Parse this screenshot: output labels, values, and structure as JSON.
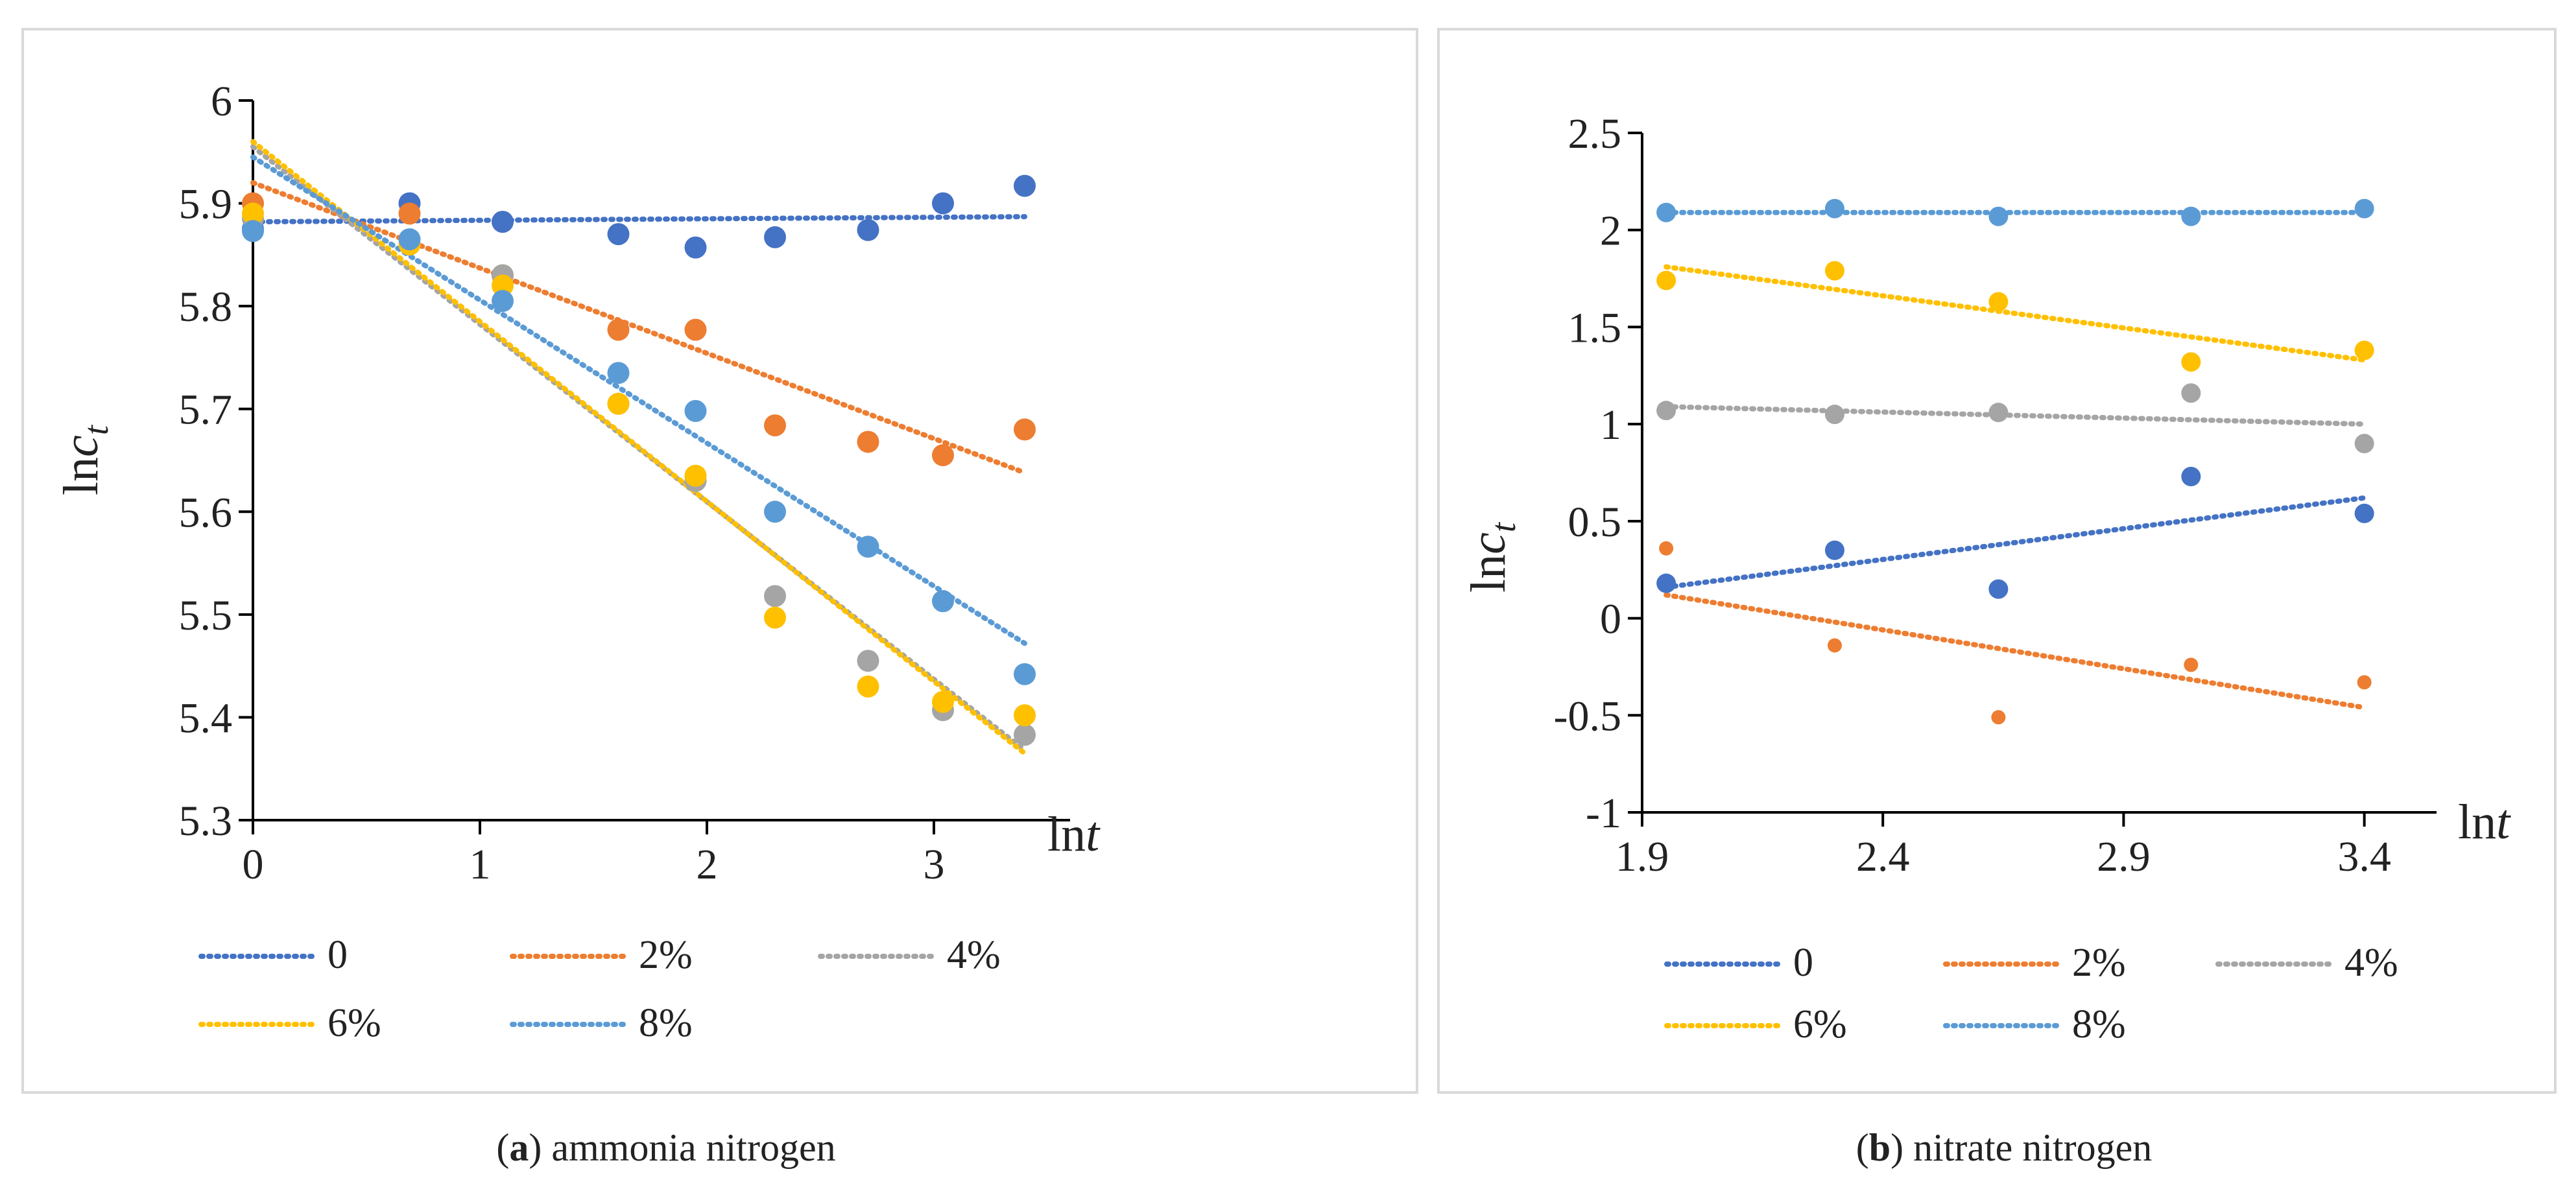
{
  "chart_data": [
    {
      "type": "scatter",
      "panel": "a",
      "caption": {
        "open": "(",
        "letter": "a",
        "close": ")",
        "text": " ammonia nitrogen"
      },
      "xlabel": {
        "pre": "ln",
        "var": "t"
      },
      "ylabel": {
        "pre": "ln",
        "var": "c",
        "sub": "t"
      },
      "xlim": [
        0,
        3.6
      ],
      "ylim": [
        5.3,
        6.0
      ],
      "xticks": [
        "0",
        "1",
        "2",
        "3"
      ],
      "xtick_values": [
        0,
        1,
        2,
        3
      ],
      "yticks": [
        "6",
        "5.9",
        "5.8",
        "5.7",
        "5.6",
        "5.5",
        "5.4",
        "5.3"
      ],
      "ytick_values": [
        6.0,
        5.9,
        5.8,
        5.7,
        5.6,
        5.5,
        5.4,
        5.3
      ],
      "grid": false,
      "legend": "bottom",
      "series": [
        {
          "name": "0",
          "color": "#4472C4",
          "x": [
            0,
            0.69,
            1.1,
            1.61,
            1.95,
            2.3,
            2.71,
            3.04,
            3.4
          ],
          "y": [
            5.875,
            5.9,
            5.882,
            5.87,
            5.857,
            5.867,
            5.874,
            5.9,
            5.917
          ],
          "trend": [
            [
              0,
              5.882
            ],
            [
              3.4,
              5.887
            ]
          ]
        },
        {
          "name": "2%",
          "color": "#ED7D31",
          "x": [
            0,
            0.69,
            1.1,
            1.61,
            1.95,
            2.3,
            2.71,
            3.04,
            3.4
          ],
          "y": [
            5.9,
            5.89,
            5.83,
            5.777,
            5.777,
            5.684,
            5.668,
            5.655,
            5.68
          ],
          "trend": [
            [
              0,
              5.92
            ],
            [
              3.4,
              5.638
            ]
          ]
        },
        {
          "name": "4%",
          "color": "#A5A5A5",
          "x": [
            0,
            0.69,
            1.1,
            1.61,
            1.95,
            2.3,
            2.71,
            3.04,
            3.4
          ],
          "y": [
            5.885,
            5.86,
            5.83,
            5.705,
            5.63,
            5.518,
            5.455,
            5.407,
            5.383
          ],
          "trend": [
            [
              0,
              5.955
            ],
            [
              3.4,
              5.368
            ]
          ]
        },
        {
          "name": "6%",
          "color": "#FFC000",
          "x": [
            0,
            0.69,
            1.1,
            1.61,
            1.95,
            2.3,
            2.71,
            3.04,
            3.4
          ],
          "y": [
            5.89,
            5.86,
            5.82,
            5.705,
            5.635,
            5.497,
            5.43,
            5.415,
            5.402
          ],
          "trend": [
            [
              0,
              5.96
            ],
            [
              3.4,
              5.365
            ]
          ]
        },
        {
          "name": "8%",
          "color": "#5B9BD5",
          "x": [
            0,
            0.69,
            1.1,
            1.61,
            1.95,
            2.3,
            2.71,
            3.04,
            3.4
          ],
          "y": [
            5.873,
            5.865,
            5.805,
            5.735,
            5.698,
            5.6,
            5.566,
            5.513,
            5.442
          ],
          "trend": [
            [
              0,
              5.945
            ],
            [
              3.4,
              5.472
            ]
          ]
        }
      ]
    },
    {
      "type": "scatter",
      "panel": "b",
      "caption": {
        "open": "(",
        "letter": "b",
        "close": ")",
        "text": " nitrate nitrogen"
      },
      "xlabel": {
        "pre": "ln",
        "var": "t"
      },
      "ylabel": {
        "pre": "ln",
        "var": "c",
        "sub": "t"
      },
      "xlim": [
        1.9,
        3.55
      ],
      "ylim": [
        -1,
        2.5
      ],
      "xticks": [
        "1.9",
        "2.4",
        "2.9",
        "3.4"
      ],
      "xtick_values": [
        1.9,
        2.4,
        2.9,
        3.4
      ],
      "yticks": [
        "2.5",
        "2",
        "1.5",
        "1",
        "0.5",
        "0",
        "-0.5",
        "-1"
      ],
      "ytick_values": [
        2.5,
        2.0,
        1.5,
        1.0,
        0.5,
        0.0,
        -0.5,
        -1.0
      ],
      "grid": false,
      "legend": "bottom",
      "series": [
        {
          "name": "0",
          "color": "#4472C4",
          "x": [
            1.95,
            2.3,
            2.64,
            3.04,
            3.4
          ],
          "y": [
            0.18,
            0.35,
            0.15,
            0.73,
            0.54
          ],
          "trend": [
            [
              1.95,
              0.16
            ],
            [
              3.4,
              0.62
            ]
          ]
        },
        {
          "name": "2%",
          "color": "#ED7D31",
          "x": [
            1.95,
            2.3,
            2.64,
            3.04,
            3.4
          ],
          "y": [
            0.36,
            -0.14,
            -0.51,
            -0.24,
            -0.33
          ],
          "trend": [
            [
              1.95,
              0.12
            ],
            [
              3.4,
              -0.46
            ]
          ]
        },
        {
          "name": "4%",
          "color": "#A5A5A5",
          "x": [
            1.95,
            2.3,
            2.64,
            3.04,
            3.4
          ],
          "y": [
            1.07,
            1.05,
            1.06,
            1.16,
            0.9
          ],
          "trend": [
            [
              1.95,
              1.09
            ],
            [
              3.4,
              1.0
            ]
          ]
        },
        {
          "name": "6%",
          "color": "#FFC000",
          "x": [
            1.95,
            2.3,
            2.64,
            3.04,
            3.4
          ],
          "y": [
            1.74,
            1.79,
            1.63,
            1.32,
            1.38
          ],
          "trend": [
            [
              1.95,
              1.81
            ],
            [
              3.4,
              1.33
            ]
          ]
        },
        {
          "name": "8%",
          "color": "#5B9BD5",
          "x": [
            1.95,
            2.3,
            2.64,
            3.04,
            3.4
          ],
          "y": [
            2.09,
            2.11,
            2.07,
            2.07,
            2.11
          ],
          "trend": [
            [
              1.95,
              2.09
            ],
            [
              3.4,
              2.09
            ]
          ]
        }
      ]
    }
  ]
}
